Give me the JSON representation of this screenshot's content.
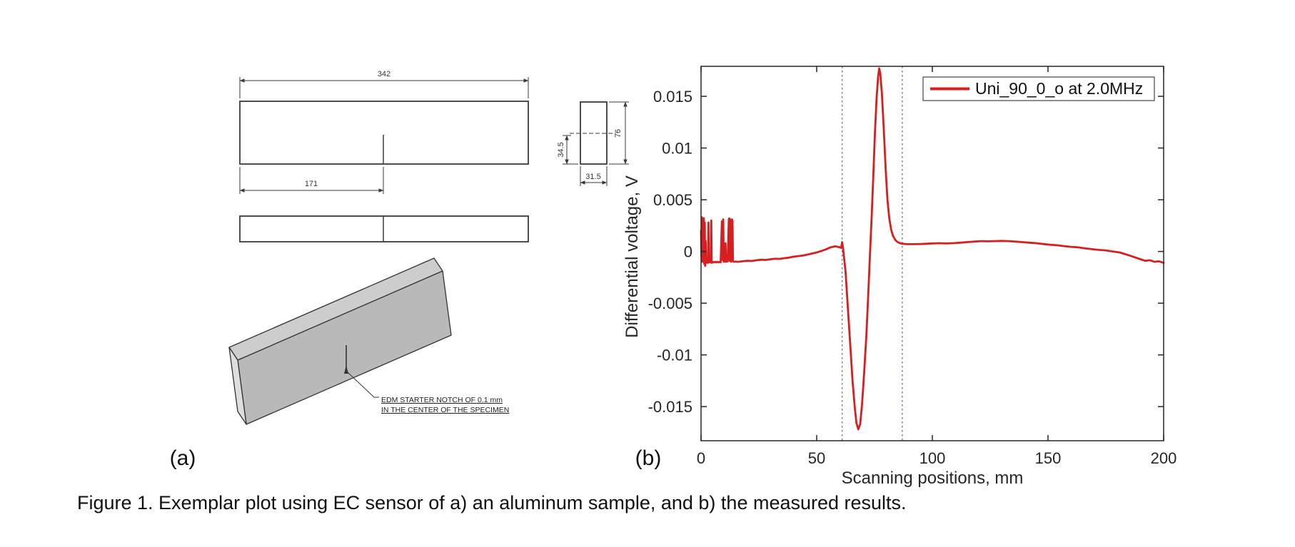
{
  "figure": {
    "caption": "Figure 1. Exemplar plot using EC sensor of a) an aluminum sample, and b) the measured results.",
    "panel_a_label": "(a)",
    "panel_b_label": "(b)"
  },
  "drawing": {
    "dim_length": "342",
    "dim_half_length": "171",
    "dim_height": "76",
    "dim_half_height": "34.5",
    "dim_thickness": "31.5",
    "notch_note_line1": "EDM STARTER NOTCH OF 0.1 mm",
    "notch_note_line2": "IN THE CENTER OF THE SPECIMEN"
  },
  "colors": {
    "series_red": "#d62020",
    "reference_dash": "#6b6b9e",
    "axis": "#262626",
    "drawing_stroke": "#3a3a3a"
  },
  "chart_data": {
    "type": "line",
    "title": "",
    "xlabel": "Scanning positions, mm",
    "ylabel": "Differential voltage, V",
    "xlim": [
      0,
      200
    ],
    "ylim": [
      -0.0183,
      0.0179
    ],
    "xticks": [
      0,
      50,
      100,
      150,
      200
    ],
    "yticks": [
      0.015,
      0.01,
      0.005,
      0,
      -0.005,
      -0.01,
      -0.015
    ],
    "ytick_labels": [
      "0.015",
      "0.01",
      "0.005",
      "0",
      "-0.005",
      "-0.01",
      "-0.015"
    ],
    "grid": false,
    "legend": {
      "position": "top-right",
      "entries": [
        {
          "label": "Uni_90_0_o at 2.0MHz",
          "color": "#d62020"
        }
      ]
    },
    "reference_lines": {
      "x": [
        61,
        87
      ],
      "style": "dashed",
      "color": "#6b6b9e"
    },
    "series": [
      {
        "name": "Uni_90_0_o at 2.0MHz",
        "color": "#d62020",
        "points": [
          [
            0,
            0.002
          ],
          [
            0.2,
            -0.0005
          ],
          [
            0.4,
            0.0033
          ],
          [
            0.6,
            -0.001
          ],
          [
            0.8,
            0.003
          ],
          [
            1.0,
            0.0015
          ],
          [
            1.2,
            0.0032
          ],
          [
            1.4,
            -0.0012
          ],
          [
            1.6,
            0.0028
          ],
          [
            1.8,
            -0.0014
          ],
          [
            2.0,
            0.001
          ],
          [
            2.2,
            -0.0011
          ],
          [
            2.6,
            -0.001
          ],
          [
            3.0,
            -0.0011
          ],
          [
            3.2,
            0.0028
          ],
          [
            3.4,
            -0.001
          ],
          [
            3.8,
            -0.00105
          ],
          [
            4.2,
            -0.001
          ],
          [
            4.4,
            0.003
          ],
          [
            4.6,
            -0.0011
          ],
          [
            5.0,
            -0.001
          ],
          [
            5.5,
            -0.00105
          ],
          [
            6,
            -0.001
          ],
          [
            6.5,
            -0.00105
          ],
          [
            7,
            -0.001
          ],
          [
            7.5,
            -0.00105
          ],
          [
            8,
            -0.001
          ],
          [
            8.5,
            -0.00105
          ],
          [
            9.0,
            0.0029
          ],
          [
            9.2,
            -0.0008
          ],
          [
            9.4,
            0.003
          ],
          [
            9.6,
            0.0031
          ],
          [
            9.8,
            -0.001
          ],
          [
            10.2,
            -0.00095
          ],
          [
            10.6,
            0.0008
          ],
          [
            10.8,
            -0.001
          ],
          [
            11.5,
            -0.00095
          ],
          [
            12.0,
            0.0031
          ],
          [
            12.2,
            0.0032
          ],
          [
            12.4,
            -0.0009
          ],
          [
            12.6,
            0.0031
          ],
          [
            12.8,
            0.003
          ],
          [
            13.0,
            -0.001
          ],
          [
            13.4,
            0.0031
          ],
          [
            13.6,
            0.0029
          ],
          [
            13.8,
            -0.00095
          ],
          [
            14.2,
            -0.001
          ],
          [
            15,
            -0.00098
          ],
          [
            16,
            -0.001
          ],
          [
            18,
            -0.00095
          ],
          [
            20,
            -0.0009
          ],
          [
            22,
            -0.00092
          ],
          [
            24,
            -0.00085
          ],
          [
            26,
            -0.0008
          ],
          [
            28,
            -0.00082
          ],
          [
            30,
            -0.00075
          ],
          [
            32,
            -0.0007
          ],
          [
            34,
            -0.00072
          ],
          [
            36,
            -0.00065
          ],
          [
            38,
            -0.0006
          ],
          [
            40,
            -0.0005
          ],
          [
            42,
            -0.00045
          ],
          [
            44,
            -0.0004
          ],
          [
            46,
            -0.0003
          ],
          [
            48,
            -0.0002
          ],
          [
            50,
            -0.0001
          ],
          [
            52,
            5e-05
          ],
          [
            54,
            0.0002
          ],
          [
            55,
            0.0003
          ],
          [
            56,
            0.0004
          ],
          [
            57,
            0.00045
          ],
          [
            58,
            0.0005
          ],
          [
            59,
            0.00045
          ],
          [
            60,
            0.0004
          ],
          [
            60.6,
            0.00035
          ],
          [
            61,
            0.0009
          ],
          [
            61.4,
            0.0003
          ],
          [
            61.8,
            -0.0005
          ],
          [
            62.5,
            -0.002
          ],
          [
            63.5,
            -0.0055
          ],
          [
            64.5,
            -0.009
          ],
          [
            65.5,
            -0.0125
          ],
          [
            66.5,
            -0.0152
          ],
          [
            67.2,
            -0.0166
          ],
          [
            68,
            -0.0172
          ],
          [
            68.8,
            -0.0167
          ],
          [
            69.6,
            -0.0148
          ],
          [
            70.5,
            -0.0118
          ],
          [
            71.5,
            -0.008
          ],
          [
            72.3,
            -0.004
          ],
          [
            73,
            -0.0005
          ],
          [
            73.8,
            0.0035
          ],
          [
            74.5,
            0.0075
          ],
          [
            75.2,
            0.0115
          ],
          [
            75.9,
            0.0148
          ],
          [
            76.5,
            0.0168
          ],
          [
            77,
            0.0177
          ],
          [
            77.5,
            0.0172
          ],
          [
            78.2,
            0.0152
          ],
          [
            79,
            0.0118
          ],
          [
            79.8,
            0.008
          ],
          [
            80.6,
            0.005
          ],
          [
            81.4,
            0.0032
          ],
          [
            82.2,
            0.0021
          ],
          [
            83,
            0.0015
          ],
          [
            84,
            0.0011
          ],
          [
            85,
            0.0009
          ],
          [
            86,
            0.0008
          ],
          [
            87,
            0.00075
          ],
          [
            89,
            0.0007
          ],
          [
            92,
            0.0007
          ],
          [
            95,
            0.00072
          ],
          [
            98,
            0.00075
          ],
          [
            100,
            0.00078
          ],
          [
            103,
            0.0008
          ],
          [
            106,
            0.00078
          ],
          [
            109,
            0.0008
          ],
          [
            112,
            0.00085
          ],
          [
            115,
            0.0009
          ],
          [
            118,
            0.00095
          ],
          [
            121,
            0.001
          ],
          [
            124,
            0.00098
          ],
          [
            127,
            0.001
          ],
          [
            130,
            0.00102
          ],
          [
            133,
            0.001
          ],
          [
            136,
            0.00095
          ],
          [
            139,
            0.0009
          ],
          [
            142,
            0.00085
          ],
          [
            145,
            0.0008
          ],
          [
            148,
            0.00072
          ],
          [
            151,
            0.00065
          ],
          [
            154,
            0.0006
          ],
          [
            157,
            0.00052
          ],
          [
            160,
            0.00045
          ],
          [
            163,
            0.0004
          ],
          [
            166,
            0.0003
          ],
          [
            169,
            0.00022
          ],
          [
            172,
            0.00015
          ],
          [
            175,
            0.0001
          ],
          [
            178,
            0
          ],
          [
            181,
            -0.0001
          ],
          [
            184,
            -0.0003
          ],
          [
            186,
            -0.00045
          ],
          [
            188,
            -0.0006
          ],
          [
            190,
            -0.00075
          ],
          [
            192,
            -0.0009
          ],
          [
            194,
            -0.00085
          ],
          [
            196,
            -0.001
          ],
          [
            198,
            -0.00095
          ],
          [
            200,
            -0.0011
          ]
        ]
      }
    ]
  }
}
